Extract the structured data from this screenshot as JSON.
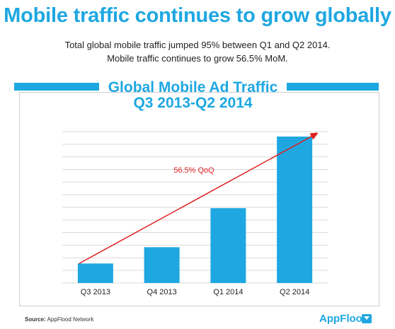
{
  "headline": "Mobile traffic continues to grow globally",
  "subtitle_lines": [
    "Total global mobile traffic jumped 95% between Q1 and Q2 2014.",
    "Mobile traffic continues to grow 56.5% MoM."
  ],
  "chart_data": {
    "type": "bar",
    "title": [
      "Global Mobile Ad Traffic",
      "Q3 2013-Q2 2014"
    ],
    "categories": [
      "Q3 2013",
      "Q4 2013",
      "Q1 2014",
      "Q2 2014"
    ],
    "values": [
      1.2,
      2.2,
      4.6,
      9.0
    ],
    "ylim": [
      0,
      10
    ],
    "grid": true,
    "annotation": "56.5% QoQ",
    "colors": {
      "bar": "#1ea7e1",
      "arrow": "#e02020",
      "grid": "#d9d9d9"
    }
  },
  "source_label": "Source:",
  "source_text": "AppFlood Network",
  "brand": "AppFlood"
}
